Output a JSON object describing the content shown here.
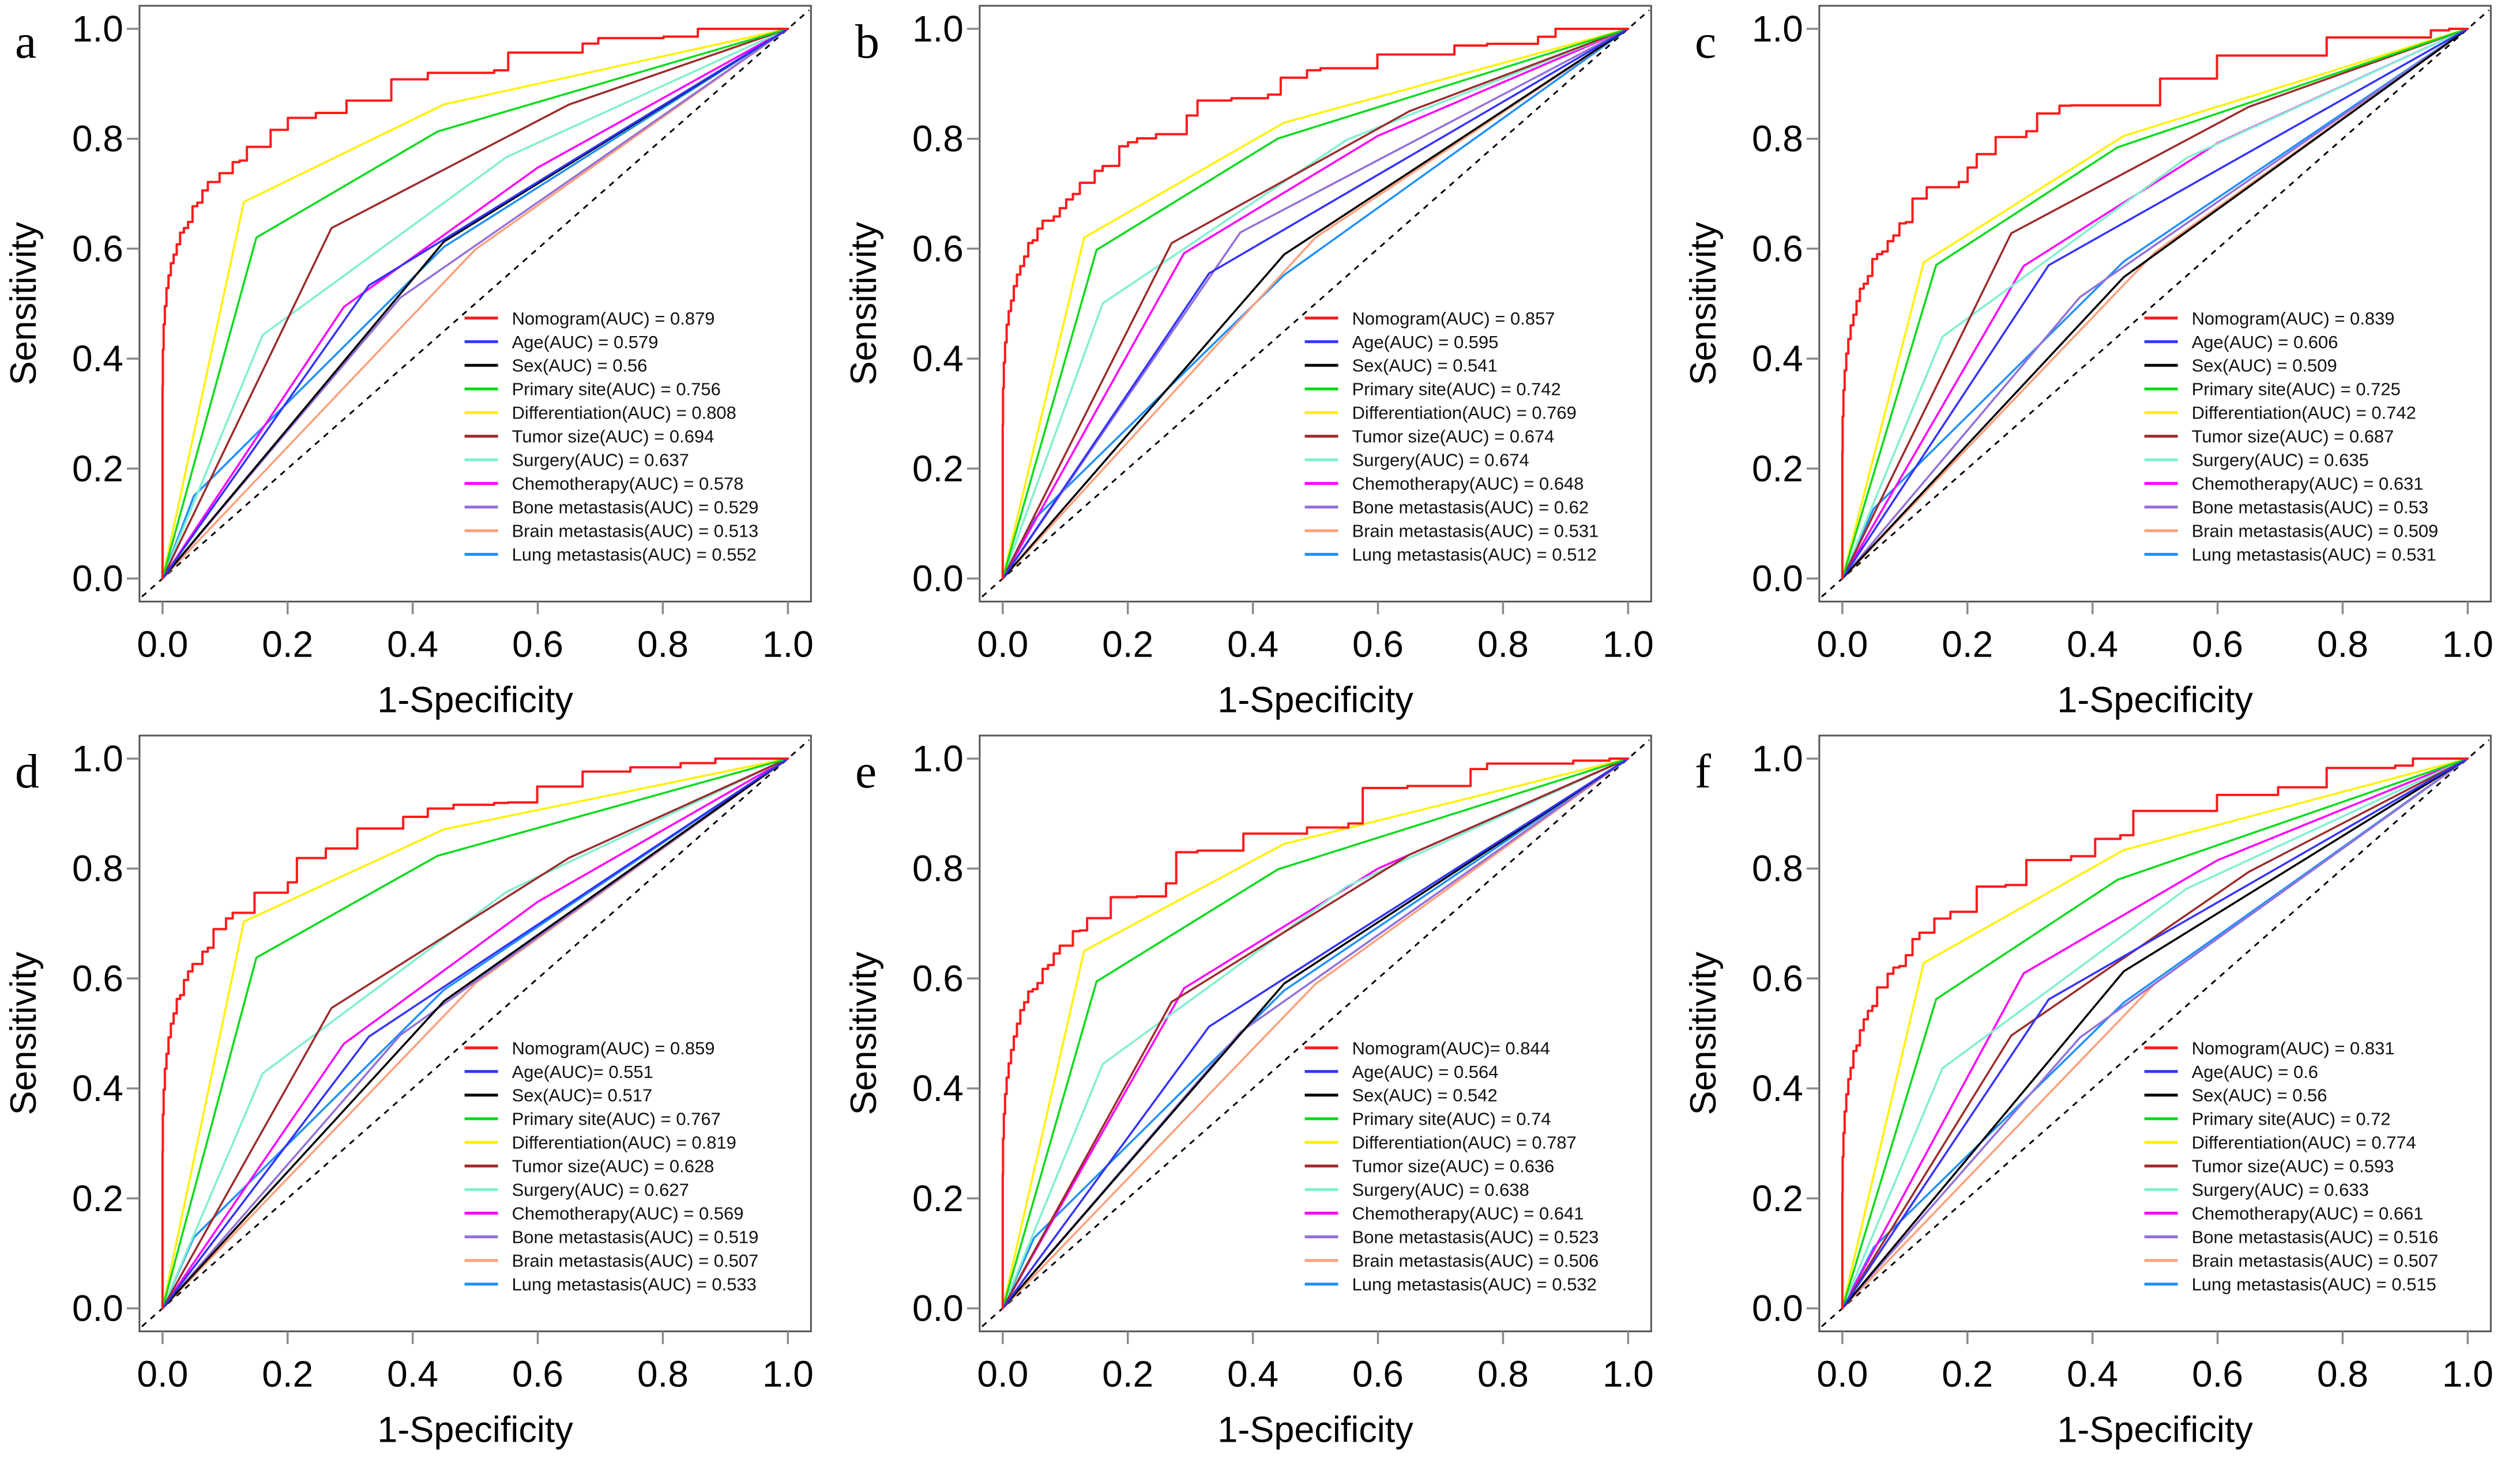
{
  "figure": {
    "xlabel": "1-Specificity",
    "ylabel": "Sensitivity",
    "x_tick_labels": [
      "0.0",
      "0.2",
      "0.4",
      "0.6",
      "0.8",
      "1.0"
    ],
    "y_tick_labels": [
      "0.0",
      "0.2",
      "0.4",
      "0.6",
      "0.8",
      "1.0"
    ],
    "reference_line_color": "#000000",
    "box_color": "#555555"
  },
  "chart_data": [
    {
      "panel": "a",
      "type": "line",
      "title": "",
      "xlabel": "1-Specificity",
      "ylabel": "Sensitivity",
      "xlim": [
        0,
        1
      ],
      "ylim": [
        0,
        1
      ],
      "x_ticks": [
        0,
        0.2,
        0.4,
        0.6,
        0.8,
        1.0
      ],
      "y_ticks": [
        0,
        0.2,
        0.4,
        0.6,
        0.8,
        1.0
      ],
      "grid": false,
      "reference": "diagonal-dashed",
      "legend_position": "lower-right-inside",
      "series": [
        {
          "name": "Nomogram",
          "auc": 0.879,
          "color": "#FF1A1A",
          "label": "Nomogram(AUC) = 0.879"
        },
        {
          "name": "Age",
          "auc": 0.579,
          "color": "#3333FF",
          "label": "Age(AUC) = 0.579"
        },
        {
          "name": "Sex",
          "auc": 0.56,
          "color": "#000000",
          "label": "Sex(AUC) = 0.56"
        },
        {
          "name": "Primary site",
          "auc": 0.756,
          "color": "#0BDB1C",
          "label": "Primary site(AUC) = 0.756"
        },
        {
          "name": "Differentiation",
          "auc": 0.808,
          "color": "#FFF000",
          "label": "Differentiation(AUC) = 0.808"
        },
        {
          "name": "Tumor size",
          "auc": 0.694,
          "color": "#9C2C2C",
          "label": "Tumor size(AUC) = 0.694"
        },
        {
          "name": "Surgery",
          "auc": 0.637,
          "color": "#7FF0D0",
          "label": "Surgery(AUC) = 0.637"
        },
        {
          "name": "Chemotherapy",
          "auc": 0.578,
          "color": "#FF00FF",
          "label": "Chemotherapy(AUC) = 0.578"
        },
        {
          "name": "Bone metastasis",
          "auc": 0.529,
          "color": "#9370DB",
          "label": "Bone metastasis(AUC) = 0.529"
        },
        {
          "name": "Brain metastasis",
          "auc": 0.513,
          "color": "#FFA07A",
          "label": "Brain metastasis(AUC) = 0.513"
        },
        {
          "name": "Lung metastasis",
          "auc": 0.552,
          "color": "#1E90FF",
          "label": "Lung metastasis(AUC) = 0.552"
        }
      ]
    },
    {
      "panel": "b",
      "type": "line",
      "title": "",
      "xlabel": "1-Specificity",
      "ylabel": "Sensitivity",
      "xlim": [
        0,
        1
      ],
      "ylim": [
        0,
        1
      ],
      "x_ticks": [
        0,
        0.2,
        0.4,
        0.6,
        0.8,
        1.0
      ],
      "y_ticks": [
        0,
        0.2,
        0.4,
        0.6,
        0.8,
        1.0
      ],
      "grid": false,
      "reference": "diagonal-dashed",
      "legend_position": "lower-right-inside",
      "series": [
        {
          "name": "Nomogram",
          "auc": 0.857,
          "color": "#FF1A1A",
          "label": "Nomogram(AUC) = 0.857"
        },
        {
          "name": "Age",
          "auc": 0.595,
          "color": "#3333FF",
          "label": "Age(AUC) = 0.595"
        },
        {
          "name": "Sex",
          "auc": 0.541,
          "color": "#000000",
          "label": "Sex(AUC) = 0.541"
        },
        {
          "name": "Primary site",
          "auc": 0.742,
          "color": "#0BDB1C",
          "label": "Primary site(AUC) = 0.742"
        },
        {
          "name": "Differentiation",
          "auc": 0.769,
          "color": "#FFF000",
          "label": "Differentiation(AUC) = 0.769"
        },
        {
          "name": "Tumor size",
          "auc": 0.674,
          "color": "#9C2C2C",
          "label": "Tumor size(AUC) = 0.674"
        },
        {
          "name": "Surgery",
          "auc": 0.674,
          "color": "#7FF0D0",
          "label": "Surgery(AUC) = 0.674"
        },
        {
          "name": "Chemotherapy",
          "auc": 0.648,
          "color": "#FF00FF",
          "label": "Chemotherapy(AUC) = 0.648"
        },
        {
          "name": "Bone metastasis",
          "auc": 0.62,
          "color": "#9370DB",
          "label": "Bone metastasis(AUC) = 0.62"
        },
        {
          "name": "Brain metastasis",
          "auc": 0.531,
          "color": "#FFA07A",
          "label": "Brain metastasis(AUC) = 0.531"
        },
        {
          "name": "Lung metastasis",
          "auc": 0.512,
          "color": "#1E90FF",
          "label": "Lung metastasis(AUC) = 0.512"
        }
      ]
    },
    {
      "panel": "c",
      "type": "line",
      "title": "",
      "xlabel": "1-Specificity",
      "ylabel": "Sensitivity",
      "xlim": [
        0,
        1
      ],
      "ylim": [
        0,
        1
      ],
      "x_ticks": [
        0,
        0.2,
        0.4,
        0.6,
        0.8,
        1.0
      ],
      "y_ticks": [
        0,
        0.2,
        0.4,
        0.6,
        0.8,
        1.0
      ],
      "grid": false,
      "reference": "diagonal-dashed",
      "legend_position": "lower-right-inside",
      "series": [
        {
          "name": "Nomogram",
          "auc": 0.839,
          "color": "#FF1A1A",
          "label": "Nomogram(AUC) = 0.839"
        },
        {
          "name": "Age",
          "auc": 0.606,
          "color": "#3333FF",
          "label": "Age(AUC) = 0.606"
        },
        {
          "name": "Sex",
          "auc": 0.509,
          "color": "#000000",
          "label": "Sex(AUC) = 0.509"
        },
        {
          "name": "Primary site",
          "auc": 0.725,
          "color": "#0BDB1C",
          "label": "Primary site(AUC) = 0.725"
        },
        {
          "name": "Differentiation",
          "auc": 0.742,
          "color": "#FFF000",
          "label": "Differentiation(AUC) = 0.742"
        },
        {
          "name": "Tumor size",
          "auc": 0.687,
          "color": "#9C2C2C",
          "label": "Tumor size(AUC) = 0.687"
        },
        {
          "name": "Surgery",
          "auc": 0.635,
          "color": "#7FF0D0",
          "label": "Surgery(AUC) = 0.635"
        },
        {
          "name": "Chemotherapy",
          "auc": 0.631,
          "color": "#FF00FF",
          "label": "Chemotherapy(AUC) = 0.631"
        },
        {
          "name": "Bone metastasis",
          "auc": 0.53,
          "color": "#9370DB",
          "label": "Bone metastasis(AUC) = 0.53"
        },
        {
          "name": "Brain metastasis",
          "auc": 0.509,
          "color": "#FFA07A",
          "label": "Brain metastasis(AUC) = 0.509"
        },
        {
          "name": "Lung metastasis",
          "auc": 0.531,
          "color": "#1E90FF",
          "label": "Lung metastasis(AUC) = 0.531"
        }
      ]
    },
    {
      "panel": "d",
      "type": "line",
      "title": "",
      "xlabel": "1-Specificity",
      "ylabel": "Sensitivity",
      "xlim": [
        0,
        1
      ],
      "ylim": [
        0,
        1
      ],
      "x_ticks": [
        0,
        0.2,
        0.4,
        0.6,
        0.8,
        1.0
      ],
      "y_ticks": [
        0,
        0.2,
        0.4,
        0.6,
        0.8,
        1.0
      ],
      "grid": false,
      "reference": "diagonal-dashed",
      "legend_position": "lower-right-inside",
      "series": [
        {
          "name": "Nomogram",
          "auc": 0.859,
          "color": "#FF1A1A",
          "label": "Nomogram(AUC) = 0.859"
        },
        {
          "name": "Age",
          "auc": 0.551,
          "color": "#3333FF",
          "label": "Age(AUC)= 0.551"
        },
        {
          "name": "Sex",
          "auc": 0.517,
          "color": "#000000",
          "label": "Sex(AUC)= 0.517"
        },
        {
          "name": "Primary site",
          "auc": 0.767,
          "color": "#0BDB1C",
          "label": "Primary site(AUC) = 0.767"
        },
        {
          "name": "Differentiation",
          "auc": 0.819,
          "color": "#FFF000",
          "label": "Differentiation(AUC) = 0.819"
        },
        {
          "name": "Tumor size",
          "auc": 0.628,
          "color": "#9C2C2C",
          "label": "Tumor size(AUC) = 0.628"
        },
        {
          "name": "Surgery",
          "auc": 0.627,
          "color": "#7FF0D0",
          "label": "Surgery(AUC) = 0.627"
        },
        {
          "name": "Chemotherapy",
          "auc": 0.569,
          "color": "#FF00FF",
          "label": "Chemotherapy(AUC) = 0.569"
        },
        {
          "name": "Bone metastasis",
          "auc": 0.519,
          "color": "#9370DB",
          "label": "Bone metastasis(AUC) = 0.519"
        },
        {
          "name": "Brain metastasis",
          "auc": 0.507,
          "color": "#FFA07A",
          "label": "Brain metastasis(AUC) = 0.507"
        },
        {
          "name": "Lung metastasis",
          "auc": 0.533,
          "color": "#1E90FF",
          "label": "Lung metastasis(AUC) = 0.533"
        }
      ]
    },
    {
      "panel": "e",
      "type": "line",
      "title": "",
      "xlabel": "1-Specificity",
      "ylabel": "Sensitivity",
      "xlim": [
        0,
        1
      ],
      "ylim": [
        0,
        1
      ],
      "x_ticks": [
        0,
        0.2,
        0.4,
        0.6,
        0.8,
        1.0
      ],
      "y_ticks": [
        0,
        0.2,
        0.4,
        0.6,
        0.8,
        1.0
      ],
      "grid": false,
      "reference": "diagonal-dashed",
      "legend_position": "lower-right-inside",
      "series": [
        {
          "name": "Nomogram",
          "auc": 0.844,
          "color": "#FF1A1A",
          "label": "Nomogram(AUC)= 0.844"
        },
        {
          "name": "Age",
          "auc": 0.564,
          "color": "#3333FF",
          "label": "Age(AUC) = 0.564"
        },
        {
          "name": "Sex",
          "auc": 0.542,
          "color": "#000000",
          "label": "Sex(AUC) = 0.542"
        },
        {
          "name": "Primary site",
          "auc": 0.74,
          "color": "#0BDB1C",
          "label": "Primary site(AUC) = 0.74"
        },
        {
          "name": "Differentiation",
          "auc": 0.787,
          "color": "#FFF000",
          "label": "Differentiation(AUC) = 0.787"
        },
        {
          "name": "Tumor size",
          "auc": 0.636,
          "color": "#9C2C2C",
          "label": "Tumor size(AUC) = 0.636"
        },
        {
          "name": "Surgery",
          "auc": 0.638,
          "color": "#7FF0D0",
          "label": "Surgery(AUC) = 0.638"
        },
        {
          "name": "Chemotherapy",
          "auc": 0.641,
          "color": "#FF00FF",
          "label": "Chemotherapy(AUC) = 0.641"
        },
        {
          "name": "Bone metastasis",
          "auc": 0.523,
          "color": "#9370DB",
          "label": "Bone metastasis(AUC) = 0.523"
        },
        {
          "name": "Brain metastasis",
          "auc": 0.506,
          "color": "#FFA07A",
          "label": "Brain metastasis(AUC) = 0.506"
        },
        {
          "name": "Lung metastasis",
          "auc": 0.532,
          "color": "#1E90FF",
          "label": "Lung metastasis(AUC) = 0.532"
        }
      ]
    },
    {
      "panel": "f",
      "type": "line",
      "title": "",
      "xlabel": "1-Specificity",
      "ylabel": "Sensitivity",
      "xlim": [
        0,
        1
      ],
      "ylim": [
        0,
        1
      ],
      "x_ticks": [
        0,
        0.2,
        0.4,
        0.6,
        0.8,
        1.0
      ],
      "y_ticks": [
        0,
        0.2,
        0.4,
        0.6,
        0.8,
        1.0
      ],
      "grid": false,
      "reference": "diagonal-dashed",
      "legend_position": "lower-right-inside",
      "series": [
        {
          "name": "Nomogram",
          "auc": 0.831,
          "color": "#FF1A1A",
          "label": "Nomogram(AUC) = 0.831"
        },
        {
          "name": "Age",
          "auc": 0.6,
          "color": "#3333FF",
          "label": "Age(AUC) = 0.6"
        },
        {
          "name": "Sex",
          "auc": 0.56,
          "color": "#000000",
          "label": "Sex(AUC) = 0.56"
        },
        {
          "name": "Primary site",
          "auc": 0.72,
          "color": "#0BDB1C",
          "label": "Primary site(AUC) = 0.72"
        },
        {
          "name": "Differentiation",
          "auc": 0.774,
          "color": "#FFF000",
          "label": "Differentiation(AUC) = 0.774"
        },
        {
          "name": "Tumor size",
          "auc": 0.593,
          "color": "#9C2C2C",
          "label": "Tumor size(AUC) = 0.593"
        },
        {
          "name": "Surgery",
          "auc": 0.633,
          "color": "#7FF0D0",
          "label": "Surgery(AUC) = 0.633"
        },
        {
          "name": "Chemotherapy",
          "auc": 0.661,
          "color": "#FF00FF",
          "label": "Chemotherapy(AUC) = 0.661"
        },
        {
          "name": "Bone metastasis",
          "auc": 0.516,
          "color": "#9370DB",
          "label": "Bone metastasis(AUC) = 0.516"
        },
        {
          "name": "Brain metastasis",
          "auc": 0.507,
          "color": "#FFA07A",
          "label": "Brain metastasis(AUC) = 0.507"
        },
        {
          "name": "Lung metastasis",
          "auc": 0.515,
          "color": "#1E90FF",
          "label": "Lung metastasis(AUC) = 0.515"
        }
      ]
    }
  ]
}
